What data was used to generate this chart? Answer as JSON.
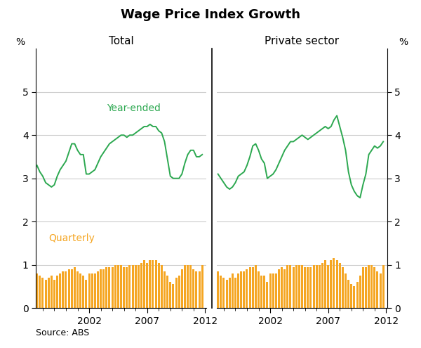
{
  "title": "Wage Price Index Growth",
  "source": "Source: ABS",
  "left_panel_label": "Total",
  "right_panel_label": "Private sector",
  "ylabel_left": "%",
  "ylabel_right": "%",
  "ylim": [
    0,
    6
  ],
  "yticks": [
    0,
    1,
    2,
    3,
    4,
    5
  ],
  "line_color": "#2CA850",
  "bar_color": "#F5A623",
  "year_ended_label": "Year-ended",
  "quarterly_label": "Quarterly",
  "bg_color": "#FFFFFF",
  "grid_color": "#CCCCCC",
  "total_year_ended": [
    3.3,
    3.15,
    3.05,
    2.9,
    2.85,
    2.8,
    2.85,
    3.05,
    3.2,
    3.3,
    3.4,
    3.6,
    3.8,
    3.8,
    3.65,
    3.55,
    3.55,
    3.1,
    3.1,
    3.15,
    3.2,
    3.35,
    3.5,
    3.6,
    3.7,
    3.8,
    3.85,
    3.9,
    3.95,
    4.0,
    4.0,
    3.95,
    4.0,
    4.0,
    4.05,
    4.1,
    4.15,
    4.2,
    4.2,
    4.25,
    4.2,
    4.2,
    4.1,
    4.05,
    3.85,
    3.45,
    3.05,
    3.0,
    3.0,
    3.0,
    3.1,
    3.35,
    3.55,
    3.65,
    3.65,
    3.5,
    3.5,
    3.55
  ],
  "total_quarterly": [
    0.8,
    0.75,
    0.7,
    0.65,
    0.7,
    0.75,
    0.65,
    0.75,
    0.8,
    0.85,
    0.85,
    0.9,
    0.9,
    0.95,
    0.85,
    0.8,
    0.75,
    0.65,
    0.8,
    0.8,
    0.8,
    0.85,
    0.9,
    0.9,
    0.95,
    0.95,
    0.95,
    1.0,
    1.0,
    1.0,
    0.95,
    0.95,
    1.0,
    1.0,
    1.0,
    1.0,
    1.05,
    1.1,
    1.05,
    1.1,
    1.1,
    1.1,
    1.05,
    1.0,
    0.85,
    0.75,
    0.6,
    0.55,
    0.7,
    0.75,
    0.9,
    1.0,
    1.0,
    1.0,
    0.9,
    0.85,
    0.85,
    1.0
  ],
  "private_year_ended": [
    3.1,
    3.0,
    2.9,
    2.8,
    2.75,
    2.8,
    2.9,
    3.05,
    3.1,
    3.15,
    3.3,
    3.5,
    3.75,
    3.8,
    3.65,
    3.45,
    3.35,
    3.0,
    3.05,
    3.1,
    3.2,
    3.35,
    3.5,
    3.65,
    3.75,
    3.85,
    3.85,
    3.9,
    3.95,
    4.0,
    3.95,
    3.9,
    3.95,
    4.0,
    4.05,
    4.1,
    4.15,
    4.2,
    4.15,
    4.2,
    4.35,
    4.45,
    4.2,
    3.95,
    3.65,
    3.15,
    2.85,
    2.7,
    2.6,
    2.55,
    2.85,
    3.1,
    3.55,
    3.65,
    3.75,
    3.7,
    3.75,
    3.85
  ],
  "private_quarterly": [
    0.85,
    0.75,
    0.7,
    0.65,
    0.7,
    0.8,
    0.7,
    0.8,
    0.85,
    0.85,
    0.9,
    0.95,
    0.95,
    1.0,
    0.85,
    0.75,
    0.75,
    0.6,
    0.8,
    0.8,
    0.8,
    0.9,
    0.95,
    0.9,
    1.0,
    1.0,
    0.95,
    1.0,
    1.0,
    1.0,
    0.95,
    0.95,
    0.95,
    1.0,
    1.0,
    1.0,
    1.05,
    1.1,
    1.0,
    1.1,
    1.15,
    1.1,
    1.05,
    0.95,
    0.8,
    0.65,
    0.55,
    0.5,
    0.6,
    0.75,
    0.95,
    0.95,
    1.0,
    1.0,
    0.95,
    0.85,
    0.8,
    1.0
  ]
}
